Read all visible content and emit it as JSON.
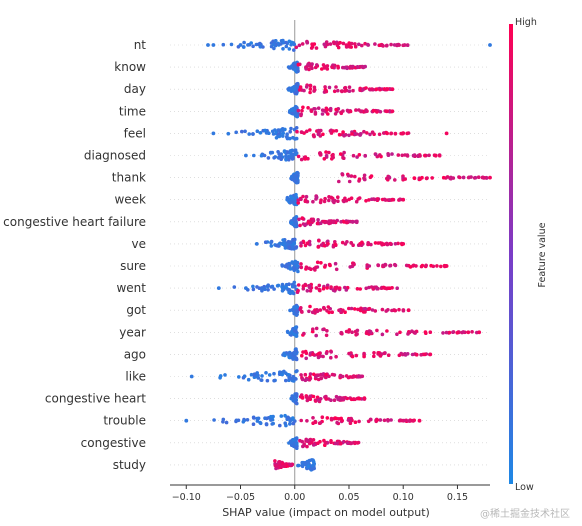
{
  "chart_data": {
    "type": "scatter",
    "subtype": "shap-beeswarm",
    "xlabel": "SHAP value (impact on model output)",
    "xlim": [
      -0.115,
      0.18
    ],
    "xticks": [
      -0.1,
      -0.05,
      0.0,
      0.05,
      0.1,
      0.15
    ],
    "xtick_labels": [
      "−0.10",
      "−0.05",
      "0.00",
      "0.05",
      "0.10",
      "0.15"
    ],
    "zero_line": 0.0,
    "colorbar": {
      "label": "Feature value",
      "high_label": "High",
      "low_label": "Low",
      "low_color": "#1e88e5",
      "high_color": "#ff0052"
    },
    "features": [
      {
        "name": "nt",
        "low_min": -0.08,
        "low_max": 0.0,
        "high_min": 0.0,
        "high_max": 0.105,
        "outliers": [
          -0.08,
          -0.05,
          -0.075,
          0.18
        ]
      },
      {
        "name": "know",
        "low_min": -0.006,
        "low_max": 0.003,
        "high_min": 0.003,
        "high_max": 0.065,
        "outliers": []
      },
      {
        "name": "day",
        "low_min": -0.008,
        "low_max": 0.003,
        "high_min": 0.003,
        "high_max": 0.09,
        "outliers": [
          0.085,
          0.09
        ]
      },
      {
        "name": "time",
        "low_min": -0.007,
        "low_max": 0.003,
        "high_min": 0.003,
        "high_max": 0.09,
        "outliers": [
          0.085,
          0.09
        ]
      },
      {
        "name": "feel",
        "low_min": -0.075,
        "low_max": 0.002,
        "high_min": 0.002,
        "high_max": 0.105,
        "outliers": [
          -0.075,
          0.14
        ]
      },
      {
        "name": "diagnosed",
        "low_min": -0.045,
        "low_max": 0.002,
        "high_min": 0.002,
        "high_max": 0.135,
        "outliers": [
          -0.045,
          0.12,
          0.13
        ]
      },
      {
        "name": "thank",
        "low_min": -0.005,
        "low_max": 0.003,
        "high_min": 0.04,
        "high_max": 0.18,
        "outliers": [
          0.18
        ]
      },
      {
        "name": "week",
        "low_min": -0.012,
        "low_max": 0.002,
        "high_min": 0.002,
        "high_max": 0.1,
        "outliers": [
          0.09,
          0.1
        ]
      },
      {
        "name": "congestive heart failure",
        "low_min": -0.006,
        "low_max": 0.002,
        "high_min": 0.002,
        "high_max": 0.058,
        "outliers": []
      },
      {
        "name": "ve",
        "low_min": -0.038,
        "low_max": 0.002,
        "high_min": 0.002,
        "high_max": 0.1,
        "outliers": [
          -0.035,
          0.1
        ]
      },
      {
        "name": "sure",
        "low_min": -0.015,
        "low_max": 0.003,
        "high_min": 0.003,
        "high_max": 0.14,
        "outliers": [
          0.14
        ]
      },
      {
        "name": "went",
        "low_min": -0.07,
        "low_max": 0.002,
        "high_min": 0.002,
        "high_max": 0.095,
        "outliers": [
          -0.07,
          -0.045
        ]
      },
      {
        "name": "got",
        "low_min": -0.005,
        "low_max": 0.003,
        "high_min": 0.003,
        "high_max": 0.105,
        "outliers": [
          0.105
        ]
      },
      {
        "name": "year",
        "low_min": -0.008,
        "low_max": 0.002,
        "high_min": 0.002,
        "high_max": 0.17,
        "outliers": [
          0.16,
          0.17
        ]
      },
      {
        "name": "ago",
        "low_min": -0.015,
        "low_max": 0.002,
        "high_min": 0.002,
        "high_max": 0.125,
        "outliers": [
          0.12,
          0.125
        ]
      },
      {
        "name": "like",
        "low_min": -0.095,
        "low_max": 0.003,
        "high_min": 0.003,
        "high_max": 0.065,
        "outliers": [
          -0.095,
          -0.035
        ]
      },
      {
        "name": "congestive heart",
        "low_min": -0.006,
        "low_max": 0.002,
        "high_min": 0.002,
        "high_max": 0.065,
        "outliers": []
      },
      {
        "name": "trouble",
        "low_min": -0.1,
        "low_max": 0.002,
        "high_min": 0.002,
        "high_max": 0.115,
        "outliers": [
          -0.1,
          0.115
        ]
      },
      {
        "name": "congestive",
        "low_min": -0.006,
        "low_max": 0.002,
        "high_min": 0.002,
        "high_max": 0.06,
        "outliers": []
      },
      {
        "name": "study",
        "low_min": 0.0,
        "low_max": 0.018,
        "high_min": -0.02,
        "high_max": -0.002,
        "outliers": []
      }
    ]
  },
  "watermark": "@稀土掘金技术社区"
}
